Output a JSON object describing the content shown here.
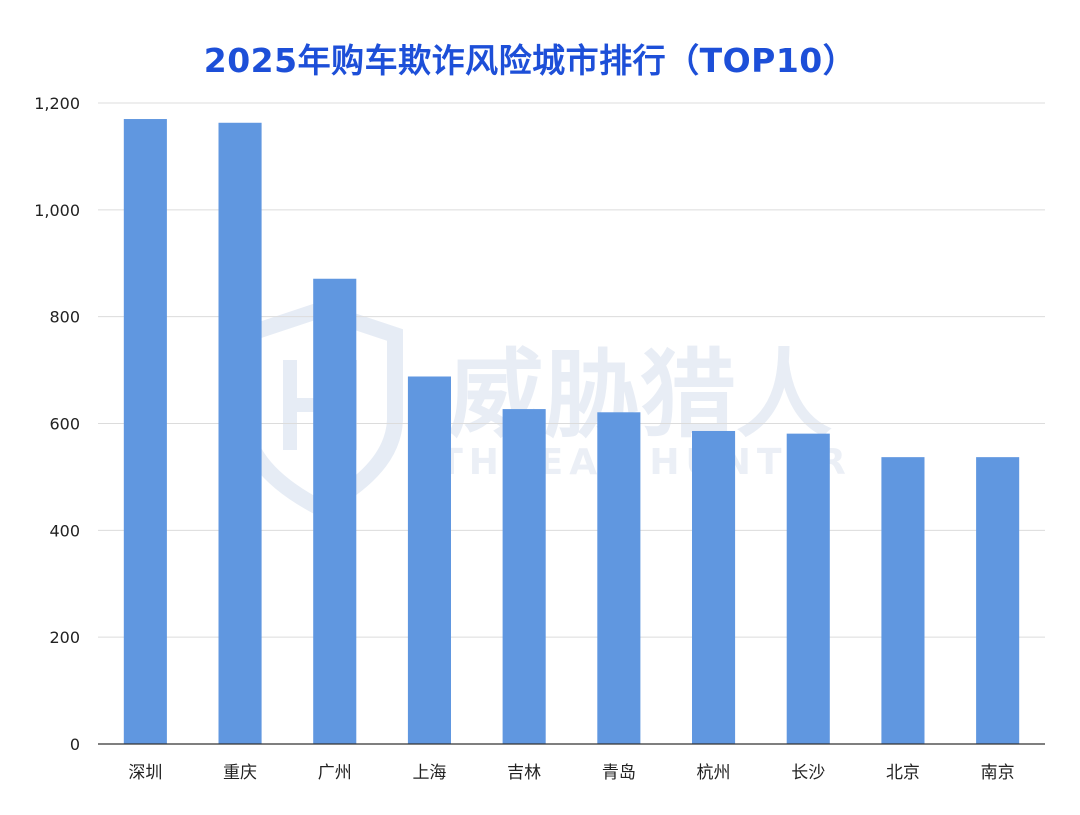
{
  "chart_data": {
    "type": "bar",
    "title": "2025年购车欺诈风险城市排行（TOP10）",
    "categories": [
      "深圳",
      "重庆",
      "广州",
      "上海",
      "吉林",
      "青岛",
      "杭州",
      "长沙",
      "北京",
      "南京"
    ],
    "values": [
      1170,
      1163,
      871,
      688,
      627,
      621,
      586,
      581,
      537,
      537
    ],
    "yticks": [
      0,
      200,
      400,
      600,
      800,
      1000,
      1200
    ],
    "ytick_labels": [
      "0",
      "200",
      "400",
      "600",
      "800",
      "1,000",
      "1,200"
    ],
    "ylim": [
      0,
      1200
    ],
    "xlabel": "",
    "ylabel": "",
    "grid": true,
    "legend": "none",
    "bar_color": "#6097e0"
  },
  "watermark": {
    "brand_cn": "威胁猎人",
    "brand_en": "THREAT HUNTER",
    "color": "#e3e9f3"
  },
  "colors": {
    "title": "#1d4fd8",
    "grid": "#dcdcdc",
    "axis": "#333333"
  }
}
